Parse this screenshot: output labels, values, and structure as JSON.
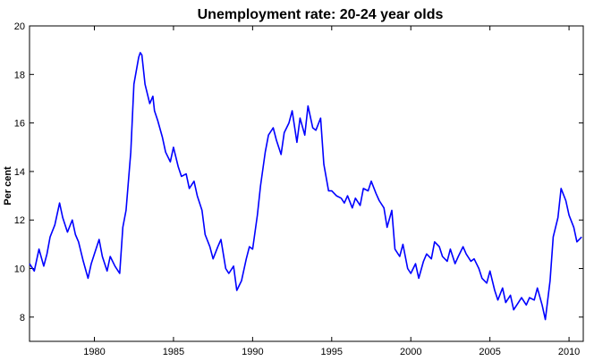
{
  "chart_data": {
    "type": "line",
    "title": "Unemployment rate: 20-24 year olds",
    "xlabel": "",
    "ylabel": "Per cent",
    "xlim": [
      1975.9,
      2010.9
    ],
    "ylim": [
      7,
      20
    ],
    "x_ticks": [
      1980,
      1985,
      1990,
      1995,
      2000,
      2005,
      2010
    ],
    "y_ticks": [
      8,
      10,
      12,
      14,
      16,
      18,
      20
    ],
    "grid": false,
    "legend": "none",
    "line_color": "#0000ff",
    "series": [
      {
        "x": [
          1975.9,
          1976.2,
          1976.5,
          1976.8,
          1977.0,
          1977.2,
          1977.5,
          1977.8,
          1978.0,
          1978.3,
          1978.6,
          1978.8,
          1979.0,
          1979.3,
          1979.6,
          1979.8,
          1980.0,
          1980.3,
          1980.5,
          1980.8,
          1981.0,
          1981.3,
          1981.6,
          1981.8,
          1982.0,
          1982.3,
          1982.5,
          1982.8,
          1982.9,
          1983.0,
          1983.2,
          1983.5,
          1983.7,
          1983.8,
          1984.0,
          1984.3,
          1984.5,
          1984.8,
          1985.0,
          1985.3,
          1985.5,
          1985.8,
          1986.0,
          1986.3,
          1986.5,
          1986.8,
          1987.0,
          1987.3,
          1987.5,
          1987.8,
          1988.0,
          1988.3,
          1988.5,
          1988.8,
          1989.0,
          1989.3,
          1989.6,
          1989.8,
          1990.0,
          1990.3,
          1990.5,
          1990.8,
          1991.0,
          1991.3,
          1991.5,
          1991.8,
          1992.0,
          1992.3,
          1992.5,
          1992.8,
          1993.0,
          1993.3,
          1993.5,
          1993.8,
          1994.0,
          1994.3,
          1994.5,
          1994.8,
          1995.0,
          1995.3,
          1995.6,
          1995.8,
          1996.0,
          1996.3,
          1996.5,
          1996.8,
          1997.0,
          1997.3,
          1997.5,
          1997.8,
          1998.0,
          1998.3,
          1998.5,
          1998.8,
          1999.0,
          1999.3,
          1999.5,
          1999.8,
          2000.0,
          2000.3,
          2000.5,
          2000.8,
          2001.0,
          2001.3,
          2001.5,
          2001.8,
          2002.0,
          2002.3,
          2002.5,
          2002.8,
          2003.0,
          2003.3,
          2003.5,
          2003.8,
          2004.0,
          2004.3,
          2004.5,
          2004.8,
          2005.0,
          2005.3,
          2005.5,
          2005.8,
          2006.0,
          2006.3,
          2006.5,
          2006.8,
          2007.0,
          2007.3,
          2007.5,
          2007.8,
          2008.0,
          2008.3,
          2008.5,
          2008.8,
          2009.0,
          2009.3,
          2009.5,
          2009.8,
          2010.0,
          2010.3,
          2010.5,
          2010.8
        ],
        "y": [
          10.2,
          9.9,
          10.8,
          10.1,
          10.6,
          11.3,
          11.8,
          12.7,
          12.1,
          11.5,
          12.0,
          11.4,
          11.1,
          10.3,
          9.6,
          10.2,
          10.6,
          11.2,
          10.5,
          9.9,
          10.5,
          10.1,
          9.8,
          11.7,
          12.4,
          14.8,
          17.6,
          18.7,
          18.9,
          18.8,
          17.6,
          16.8,
          17.1,
          16.5,
          16.1,
          15.4,
          14.8,
          14.4,
          15.0,
          14.2,
          13.8,
          13.9,
          13.3,
          13.6,
          13.0,
          12.4,
          11.4,
          10.9,
          10.4,
          10.9,
          11.2,
          10.0,
          9.8,
          10.1,
          9.1,
          9.5,
          10.4,
          10.9,
          10.8,
          12.2,
          13.4,
          14.8,
          15.5,
          15.8,
          15.3,
          14.7,
          15.6,
          16.0,
          16.5,
          15.2,
          16.2,
          15.5,
          16.7,
          15.8,
          15.7,
          16.2,
          14.3,
          13.2,
          13.2,
          13.0,
          12.9,
          12.7,
          13.0,
          12.5,
          12.9,
          12.6,
          13.3,
          13.2,
          13.6,
          13.1,
          12.8,
          12.5,
          11.7,
          12.4,
          10.8,
          10.5,
          11.0,
          10.0,
          9.8,
          10.2,
          9.6,
          10.3,
          10.6,
          10.4,
          11.1,
          10.9,
          10.5,
          10.3,
          10.8,
          10.2,
          10.5,
          10.9,
          10.6,
          10.3,
          10.4,
          10.0,
          9.6,
          9.4,
          9.9,
          9.1,
          8.7,
          9.2,
          8.6,
          8.9,
          8.3,
          8.6,
          8.8,
          8.5,
          8.8,
          8.7,
          9.2,
          8.5,
          7.9,
          9.5,
          11.3,
          12.1,
          13.3,
          12.8,
          12.2,
          11.7,
          11.1,
          11.3
        ]
      }
    ]
  }
}
